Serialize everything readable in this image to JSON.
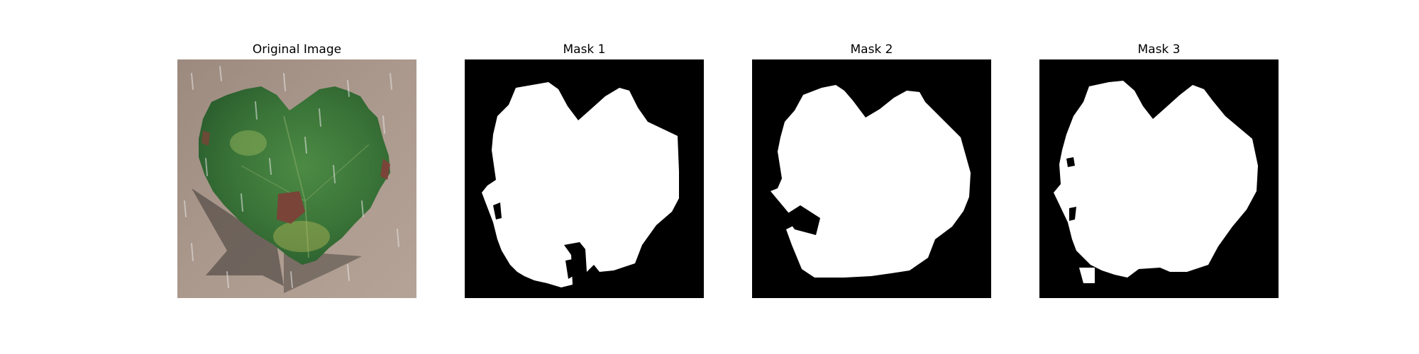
{
  "figure": {
    "panels": [
      {
        "id": "original",
        "title": "Original Image"
      },
      {
        "id": "mask1",
        "title": "Mask 1"
      },
      {
        "id": "mask2",
        "title": "Mask 2"
      },
      {
        "id": "mask3",
        "title": "Mask 3"
      }
    ]
  },
  "colors": {
    "mask_background": "#000000",
    "mask_foreground": "#ffffff",
    "photo_background": "#a8958a",
    "leaf_dark": "#2f6a33",
    "leaf_mid": "#4f8a42",
    "leaf_light": "#8cae5a",
    "lesion": "#7a4438"
  }
}
